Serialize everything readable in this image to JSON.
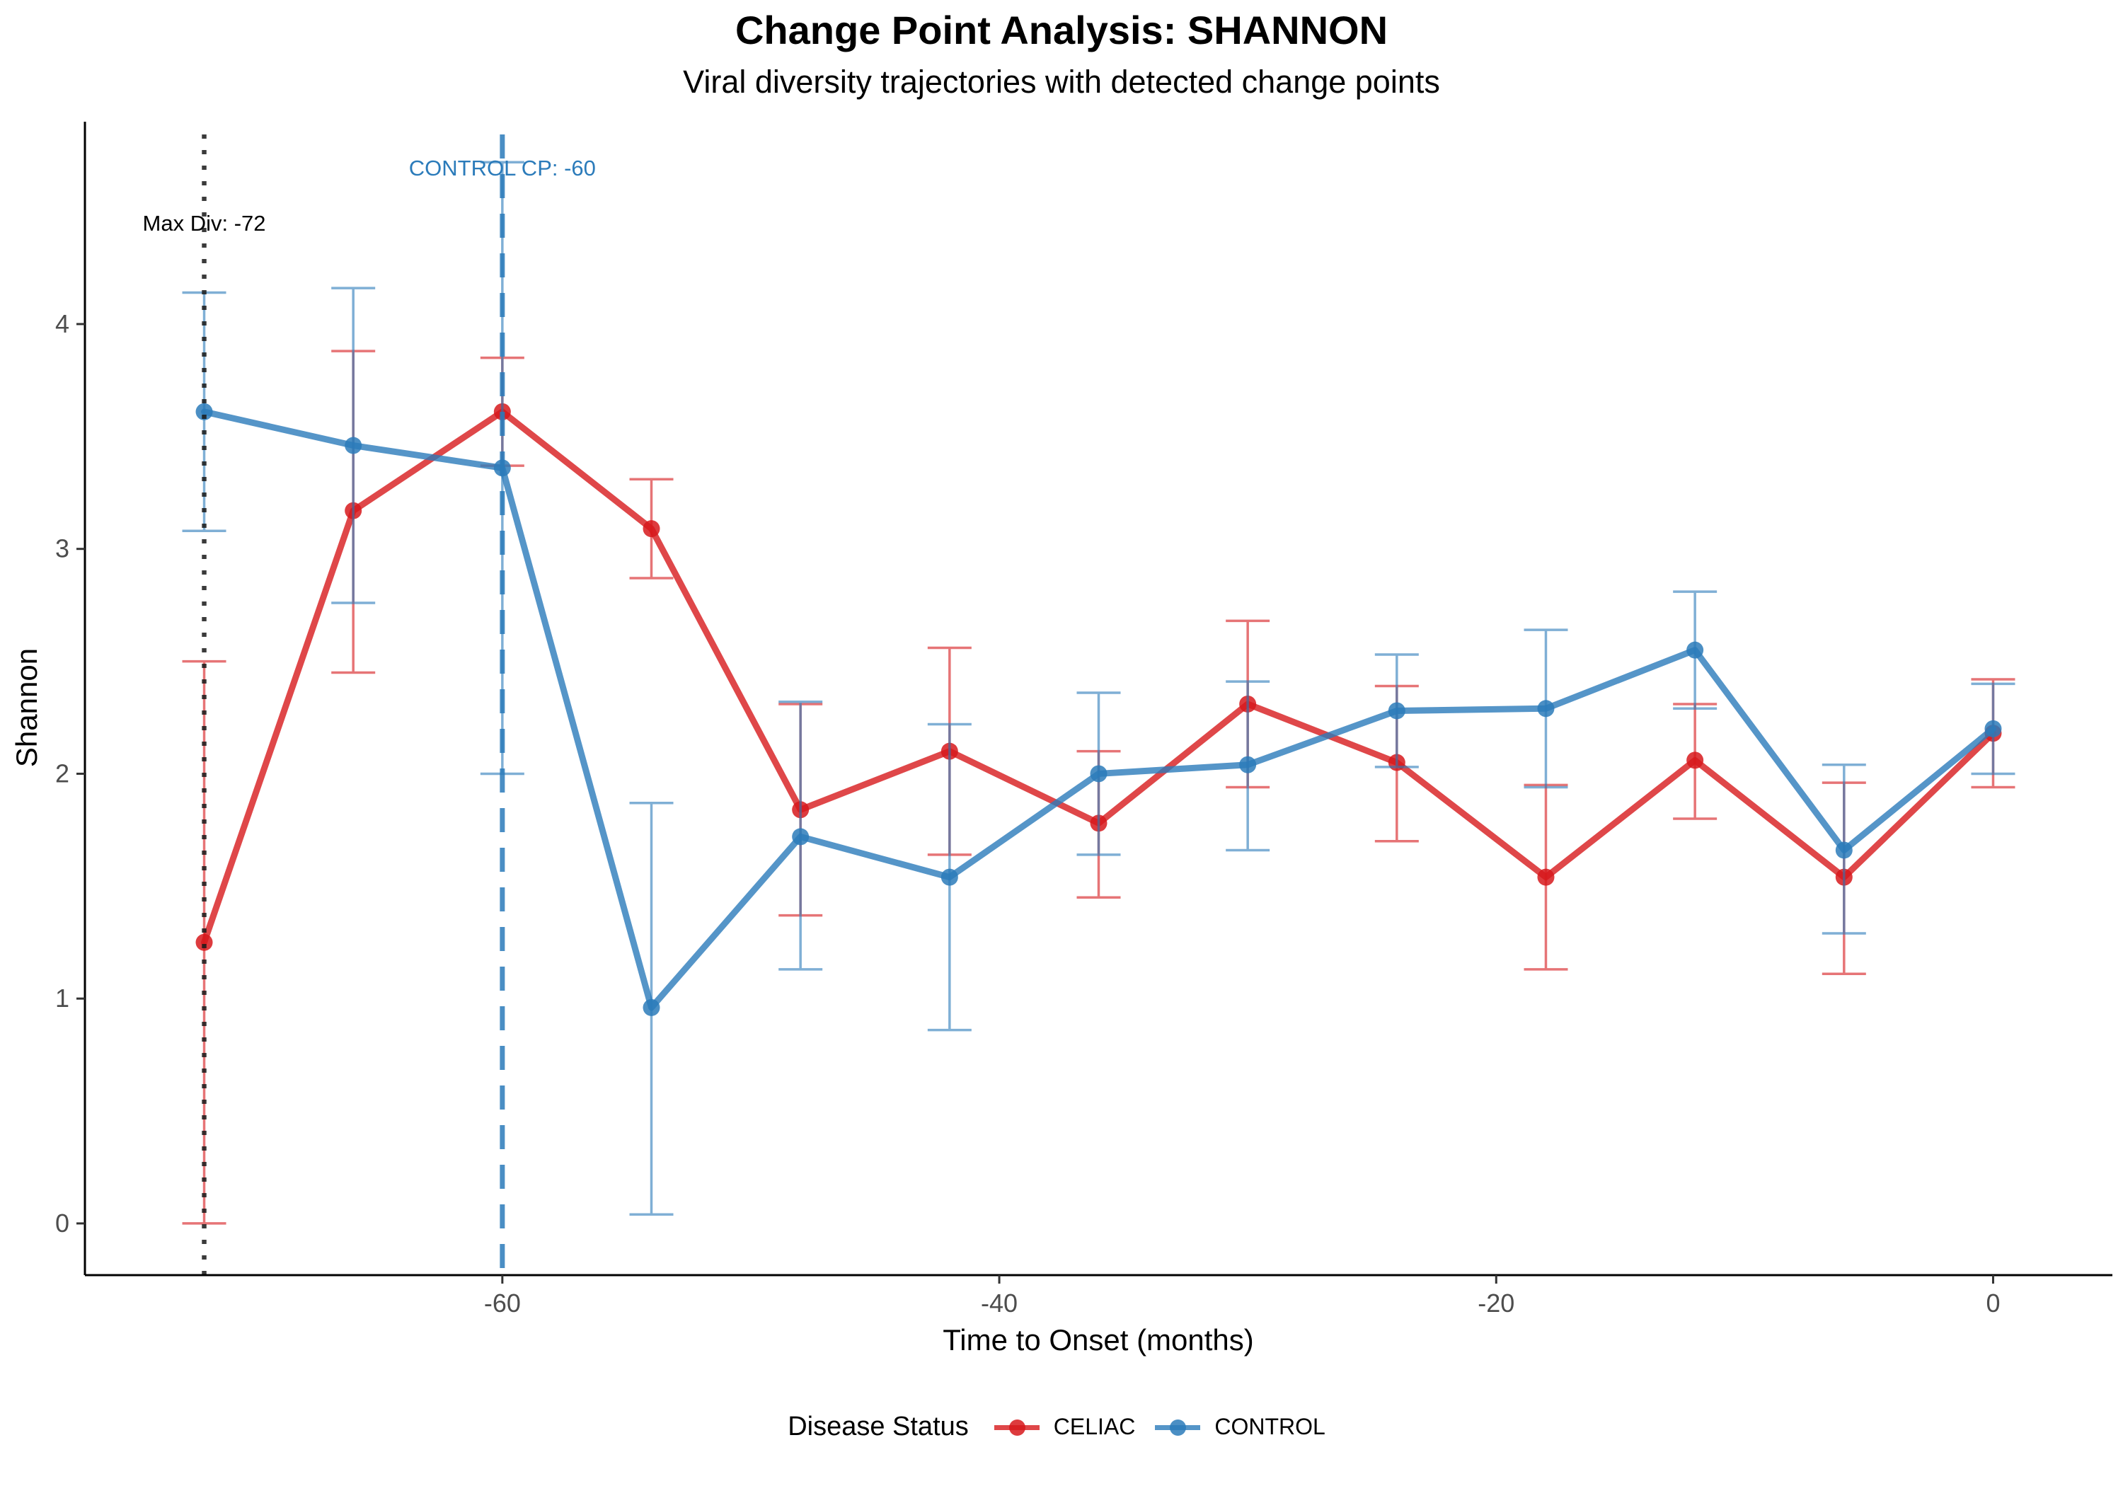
{
  "chart_data": {
    "type": "line",
    "title": "Change Point Analysis: SHANNON",
    "subtitle": "Viral diversity trajectories with detected change points",
    "xlabel": "Time to Onset (months)",
    "ylabel": "Shannon",
    "xlim": [
      -76.8,
      4.8
    ],
    "ylim": [
      -0.23,
      4.9
    ],
    "x_ticks": [
      -60,
      -40,
      -20,
      0
    ],
    "y_ticks": [
      0,
      1,
      2,
      3,
      4
    ],
    "grid": false,
    "legend": {
      "title": "Disease Status",
      "placement": "bottom"
    },
    "series": [
      {
        "name": "CELIAC",
        "color": "#d7191c",
        "x": [
          -72,
          -66,
          -60,
          -54,
          -48,
          -42,
          -36,
          -30,
          -24,
          -18,
          -12,
          -6,
          0
        ],
        "y": [
          1.25,
          3.17,
          3.61,
          3.09,
          1.84,
          2.1,
          1.78,
          2.31,
          2.05,
          1.54,
          2.06,
          1.54,
          2.18
        ],
        "error_low": [
          0.0,
          2.45,
          3.37,
          2.87,
          1.37,
          1.64,
          1.45,
          1.94,
          1.7,
          1.13,
          1.8,
          1.11,
          1.94
        ],
        "error_high": [
          2.5,
          3.88,
          3.85,
          3.31,
          2.31,
          2.56,
          2.1,
          2.68,
          2.39,
          1.95,
          2.31,
          1.96,
          2.42
        ]
      },
      {
        "name": "CONTROL",
        "color": "#2b7bba",
        "x": [
          -72,
          -66,
          -60,
          -54,
          -48,
          -42,
          -36,
          -30,
          -24,
          -18,
          -12,
          -6,
          0
        ],
        "y": [
          3.61,
          3.46,
          3.36,
          0.96,
          1.72,
          1.54,
          2.0,
          2.04,
          2.28,
          2.29,
          2.55,
          1.66,
          2.2
        ],
        "error_low": [
          3.08,
          2.76,
          2.0,
          0.04,
          1.13,
          0.86,
          1.64,
          1.66,
          2.03,
          1.94,
          2.29,
          1.29,
          2.0
        ],
        "error_high": [
          4.14,
          4.16,
          4.72,
          1.87,
          2.32,
          2.22,
          2.36,
          2.41,
          2.53,
          2.64,
          2.81,
          2.04,
          2.4
        ]
      }
    ],
    "vlines": [
      {
        "x": -72,
        "style": "dotted",
        "color": "#1a1a1a",
        "label": "Max Div: -72",
        "label_color": "#000000"
      },
      {
        "x": -60,
        "style": "dashed",
        "color": "#2b7bba",
        "label": "CONTROL CP: -60",
        "label_color": "#2b7bba"
      }
    ]
  }
}
